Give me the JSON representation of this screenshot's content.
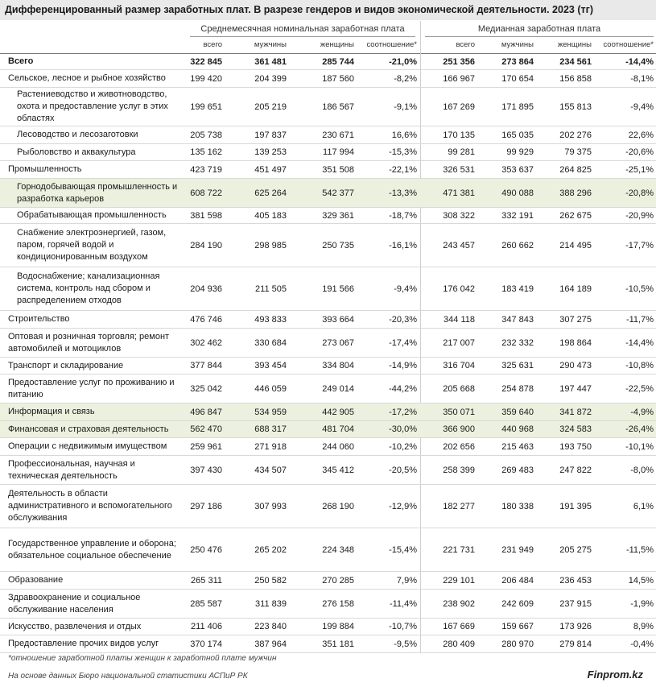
{
  "title": "Дифференцированный размер заработных плат. В разрезе гендеров и видов экономической деятельности. 2023 (тг)",
  "groups": {
    "avg": "Среднемесячная номинальная  заработная плата",
    "median": "Медианная заработная плата"
  },
  "subheaders": [
    "всего",
    "мужчины",
    "женщины",
    "соотношение*",
    "всего",
    "мужчины",
    "женщины",
    "соотношение*"
  ],
  "footnote": "*отношение заработной платы женщин к заработной плате мужчин",
  "source": "На основе данных Бюро национальной статистики АСПиР РК",
  "brand": "Finprom.kz",
  "colors": {
    "header_bg": "#e9e9e9",
    "highlight_bg": "#ebf1de"
  },
  "chart_data": {
    "type": "table",
    "rows": [
      {
        "label": "Всего",
        "values": [
          "322 845",
          "361 481",
          "285 744",
          "-21,0%",
          "251 356",
          "273 864",
          "234 561",
          "-14,4%"
        ]
      },
      {
        "label": "Сельское, лесное и рыбное хозяйство",
        "values": [
          "199 420",
          "204 399",
          "187 560",
          "-8,2%",
          "166 967",
          "170 654",
          "156 858",
          "-8,1%"
        ]
      },
      {
        "label": "Растениеводство и животноводство, охота и предоставление услуг в этих областях",
        "values": [
          "199 651",
          "205 219",
          "186 567",
          "-9,1%",
          "167 269",
          "171 895",
          "155 813",
          "-9,4%"
        ]
      },
      {
        "label": "Лесоводство и лесозаготовки",
        "values": [
          "205 738",
          "197 837",
          "230 671",
          "16,6%",
          "170 135",
          "165 035",
          "202 276",
          "22,6%"
        ]
      },
      {
        "label": "Рыболовство и аквакультура",
        "values": [
          "135 162",
          "139 253",
          "117 994",
          "-15,3%",
          "99 281",
          "99 929",
          "79 375",
          "-20,6%"
        ]
      },
      {
        "label": "Промышленность",
        "values": [
          "423 719",
          "451 497",
          "351 508",
          "-22,1%",
          "326 531",
          "353 637",
          "264 825",
          "-25,1%"
        ]
      },
      {
        "label": "Горнодобывающая промышленность и разработка карьеров",
        "values": [
          "608 722",
          "625 264",
          "542 377",
          "-13,3%",
          "471 381",
          "490 088",
          "388 296",
          "-20,8%"
        ]
      },
      {
        "label": "Обрабатывающая промышленность",
        "values": [
          "381 598",
          "405 183",
          "329 361",
          "-18,7%",
          "308 322",
          "332 191",
          "262 675",
          "-20,9%"
        ]
      },
      {
        "label": "Снабжение электроэнергией, газом, паром, горячей водой и кондиционированным воздухом",
        "values": [
          "284 190",
          "298 985",
          "250 735",
          "-16,1%",
          "243 457",
          "260 662",
          "214 495",
          "-17,7%"
        ]
      },
      {
        "label": "Водоснабжение; канализационная система, контроль над сбором и распределением отходов",
        "values": [
          "204 936",
          "211 505",
          "191 566",
          "-9,4%",
          "176 042",
          "183 419",
          "164 189",
          "-10,5%"
        ]
      },
      {
        "label": "Строительство",
        "values": [
          "476 746",
          "493 833",
          "393 664",
          "-20,3%",
          "344 118",
          "347 843",
          "307 275",
          "-11,7%"
        ]
      },
      {
        "label": "Оптовая и розничная торговля; ремонт автомобилей и мотоциклов",
        "values": [
          "302 462",
          "330 684",
          "273 067",
          "-17,4%",
          "217 007",
          "232 332",
          "198 864",
          "-14,4%"
        ]
      },
      {
        "label": "Транспорт и складирование",
        "values": [
          "377 844",
          "393 454",
          "334 804",
          "-14,9%",
          "316 704",
          "325 631",
          "290 473",
          "-10,8%"
        ]
      },
      {
        "label": "Предоставление услуг по проживанию и питанию",
        "values": [
          "325 042",
          "446 059",
          "249 014",
          "-44,2%",
          "205 668",
          "254 878",
          "197 447",
          "-22,5%"
        ]
      },
      {
        "label": "Информация и связь",
        "values": [
          "496 847",
          "534 959",
          "442 905",
          "-17,2%",
          "350 071",
          "359 640",
          "341 872",
          "-4,9%"
        ]
      },
      {
        "label": "Финансовая и страховая деятельность",
        "values": [
          "562 470",
          "688 317",
          "481 704",
          "-30,0%",
          "366 900",
          "440 968",
          "324 583",
          "-26,4%"
        ]
      },
      {
        "label": "Операции с недвижимым имуществом",
        "values": [
          "259 961",
          "271 918",
          "244 060",
          "-10,2%",
          "202 656",
          "215 463",
          "193 750",
          "-10,1%"
        ]
      },
      {
        "label": "Профессиональная, научная и техническая деятельность",
        "values": [
          "397 430",
          "434 507",
          "345 412",
          "-20,5%",
          "258 399",
          "269 483",
          "247 822",
          "-8,0%"
        ]
      },
      {
        "label": "Деятельность в области административного и вспомогательного обслуживания",
        "values": [
          "297 186",
          "307 993",
          "268 190",
          "-12,9%",
          "182 277",
          "180 338",
          "191 395",
          "6,1%"
        ]
      },
      {
        "label": "Государственное управление и оборона; обязательное социальное обеспечение",
        "values": [
          "250 476",
          "265 202",
          "224 348",
          "-15,4%",
          "221 731",
          "231 949",
          "205 275",
          "-11,5%"
        ]
      },
      {
        "label": "Образование",
        "values": [
          "265 311",
          "250 582",
          "270 285",
          "7,9%",
          "229 101",
          "206 484",
          "236 453",
          "14,5%"
        ]
      },
      {
        "label": "Здравоохранение и социальное обслуживание населения",
        "values": [
          "285 587",
          "311 839",
          "276 158",
          "-11,4%",
          "238 902",
          "242 609",
          "237 915",
          "-1,9%"
        ]
      },
      {
        "label": "Искусство, развлечения и отдых",
        "values": [
          "211 406",
          "223 840",
          "199 884",
          "-10,7%",
          "167 669",
          "159 667",
          "173 926",
          "8,9%"
        ]
      },
      {
        "label": "Предоставление прочих видов услуг",
        "values": [
          "370 174",
          "387 964",
          "351 181",
          "-9,5%",
          "280 409",
          "280 970",
          "279 814",
          "-0,4%"
        ]
      }
    ]
  }
}
